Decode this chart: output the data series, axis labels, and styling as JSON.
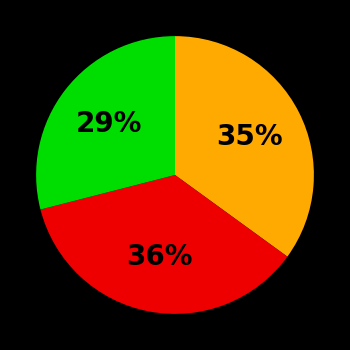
{
  "slices": [
    {
      "label": "35%",
      "value": 35,
      "color": "#ffaa00"
    },
    {
      "label": "36%",
      "value": 36,
      "color": "#ee0000"
    },
    {
      "label": "29%",
      "value": 29,
      "color": "#00dd00"
    }
  ],
  "background_color": "#000000",
  "text_color": "#000000",
  "font_size": 20,
  "startangle": 90,
  "figsize": [
    3.5,
    3.5
  ],
  "dpi": 100
}
